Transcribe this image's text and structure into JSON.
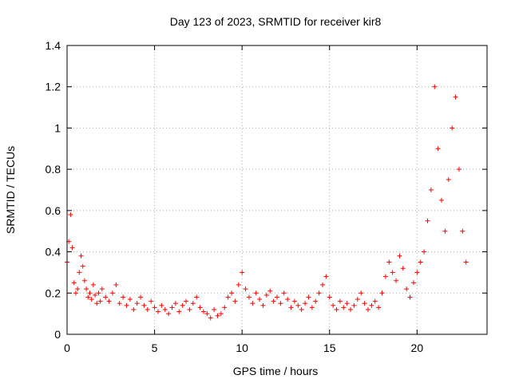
{
  "chart_data": {
    "type": "scatter",
    "title": "Day 123 of 2023, SRMTID for receiver kir8",
    "xlabel": "GPS time / hours",
    "ylabel": "SRMTID / TECUs",
    "xlim": [
      0,
      24
    ],
    "ylim": [
      0,
      1.4
    ],
    "xticks": [
      0,
      5,
      10,
      15,
      20
    ],
    "xtick_labels": [
      "0",
      "5",
      "10",
      "15",
      "20"
    ],
    "yticks": [
      0,
      0.2,
      0.4,
      0.6,
      0.8,
      1.0,
      1.2,
      1.4
    ],
    "ytick_labels": [
      "0",
      "0.2",
      "0.4",
      "0.6",
      "0.8",
      "1",
      "1.2",
      "1.4"
    ],
    "grid": true,
    "marker": "+",
    "color": "#ff0000",
    "series": [
      {
        "name": "SRMTID",
        "x": [
          0.0,
          0.1,
          0.2,
          0.3,
          0.4,
          0.5,
          0.6,
          0.7,
          0.8,
          0.9,
          1.0,
          1.1,
          1.2,
          1.3,
          1.4,
          1.5,
          1.6,
          1.7,
          1.8,
          1.9,
          2.0,
          2.2,
          2.4,
          2.6,
          2.8,
          3.0,
          3.2,
          3.4,
          3.6,
          3.8,
          4.0,
          4.2,
          4.4,
          4.6,
          4.8,
          5.0,
          5.2,
          5.4,
          5.6,
          5.8,
          6.0,
          6.2,
          6.4,
          6.6,
          6.8,
          7.0,
          7.2,
          7.4,
          7.6,
          7.8,
          8.0,
          8.2,
          8.4,
          8.6,
          8.8,
          9.0,
          9.2,
          9.4,
          9.6,
          9.8,
          10.0,
          10.2,
          10.4,
          10.6,
          10.8,
          11.0,
          11.2,
          11.4,
          11.6,
          11.8,
          12.0,
          12.2,
          12.4,
          12.6,
          12.8,
          13.0,
          13.2,
          13.4,
          13.6,
          13.8,
          14.0,
          14.2,
          14.4,
          14.6,
          14.8,
          15.0,
          15.2,
          15.4,
          15.6,
          15.8,
          16.0,
          16.2,
          16.4,
          16.6,
          16.8,
          17.0,
          17.2,
          17.4,
          17.6,
          17.8,
          18.0,
          18.2,
          18.4,
          18.6,
          18.8,
          19.0,
          19.2,
          19.4,
          19.6,
          19.8,
          20.0,
          20.2,
          20.4,
          20.6,
          20.8,
          21.0,
          21.2,
          21.4,
          21.6,
          21.8,
          22.0,
          22.2,
          22.4,
          22.6,
          22.8
        ],
        "y": [
          0.35,
          0.45,
          0.58,
          0.42,
          0.25,
          0.2,
          0.22,
          0.3,
          0.38,
          0.33,
          0.26,
          0.22,
          0.18,
          0.2,
          0.17,
          0.24,
          0.19,
          0.15,
          0.2,
          0.16,
          0.22,
          0.18,
          0.16,
          0.2,
          0.24,
          0.15,
          0.18,
          0.14,
          0.17,
          0.12,
          0.15,
          0.18,
          0.14,
          0.12,
          0.16,
          0.13,
          0.11,
          0.14,
          0.12,
          0.1,
          0.13,
          0.15,
          0.11,
          0.14,
          0.16,
          0.12,
          0.15,
          0.18,
          0.13,
          0.11,
          0.1,
          0.08,
          0.12,
          0.09,
          0.1,
          0.13,
          0.18,
          0.2,
          0.16,
          0.24,
          0.3,
          0.22,
          0.18,
          0.15,
          0.2,
          0.17,
          0.14,
          0.19,
          0.21,
          0.16,
          0.18,
          0.15,
          0.2,
          0.17,
          0.13,
          0.16,
          0.14,
          0.12,
          0.15,
          0.18,
          0.13,
          0.16,
          0.2,
          0.24,
          0.28,
          0.18,
          0.14,
          0.12,
          0.16,
          0.13,
          0.15,
          0.12,
          0.14,
          0.17,
          0.2,
          0.15,
          0.12,
          0.14,
          0.16,
          0.13,
          0.2,
          0.28,
          0.35,
          0.3,
          0.26,
          0.38,
          0.32,
          0.22,
          0.18,
          0.25,
          0.3,
          0.35,
          0.4,
          0.55,
          0.7,
          1.2,
          0.9,
          0.65,
          0.5,
          0.75,
          1.0,
          1.15,
          0.8,
          0.5,
          0.35
        ]
      }
    ]
  }
}
